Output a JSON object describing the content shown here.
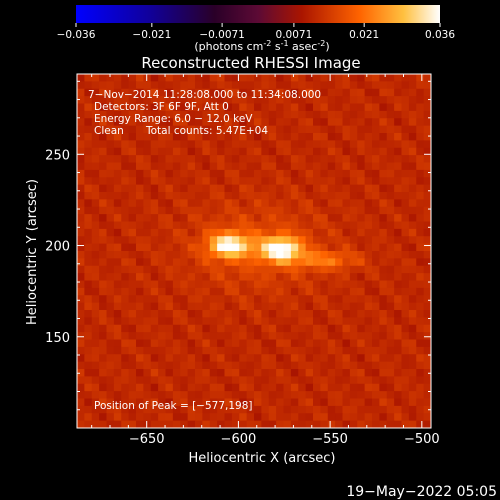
{
  "chart_data": {
    "type": "heatmap",
    "title": "Reconstructed RHESSI Image",
    "colorbar": {
      "ticks": [
        "-0.036",
        "-0.021",
        "-0.0071",
        "0.0071",
        "0.021",
        "0.036"
      ],
      "tick_values": [
        -0.036,
        -0.021,
        -0.0071,
        0.0071,
        0.021,
        0.036
      ],
      "range": [
        -0.036,
        0.036
      ],
      "label_main": "(photons cm",
      "label_exp1": "-2",
      "label_mid1": " s",
      "label_exp2": "-1",
      "label_mid2": " asec",
      "label_exp3": "-2",
      "label_end": ")"
    },
    "xlabel": "Heliocentric X (arcsec)",
    "ylabel": "Heliocentric Y (arcsec)",
    "xlim": [
      -688,
      -495
    ],
    "ylim": [
      100,
      294
    ],
    "xticks": [
      {
        "value": -650,
        "label": "−650"
      },
      {
        "value": -600,
        "label": "−600"
      },
      {
        "value": -550,
        "label": "−550"
      },
      {
        "value": -500,
        "label": "−500"
      }
    ],
    "yticks": [
      {
        "value": 150,
        "label": "150"
      },
      {
        "value": 200,
        "label": "200"
      },
      {
        "value": 250,
        "label": "250"
      }
    ],
    "sources": [
      {
        "x": -605,
        "y": 200,
        "peak": 0.034
      },
      {
        "x": -577,
        "y": 198,
        "peak": 0.036
      }
    ],
    "annotations": {
      "time": "7−Nov−2014 11:28:08.000 to 11:34:08.000",
      "detectors": "Detectors: 3F 6F 9F, Att 0",
      "energy": "Energy Range: 6.0 − 12.0 keV",
      "clean_label": "Clean",
      "total_counts": "Total counts: 5.47E+04",
      "peak": "Position of Peak = [−577,198]"
    }
  },
  "footer": {
    "date": "19−May−2022 05:05"
  }
}
